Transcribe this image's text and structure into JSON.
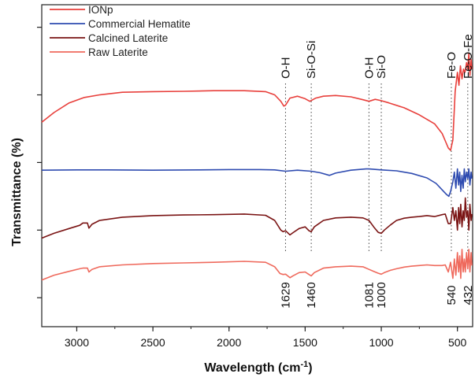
{
  "chart_data": {
    "type": "line",
    "xlabel": "Wavelength (cm",
    "xlabel_sup": "-1",
    "xlabel_suffix": ")",
    "ylabel": "Transmittance (%)",
    "xlim": [
      3230,
      400
    ],
    "x_reversed": true,
    "ylim": [
      0,
      1
    ],
    "x_ticks": [
      3000,
      2500,
      2000,
      1500,
      1000,
      500
    ],
    "x_tick_labels": [
      "3000",
      "2500",
      "2000",
      "1500",
      "1000",
      "500"
    ],
    "y_tick_labels_shown": false,
    "grid": false,
    "legend_position": "top-left",
    "series": [
      {
        "name": "IONp",
        "color": "#e8403c",
        "points": [
          [
            3230,
            0.635
          ],
          [
            3150,
            0.665
          ],
          [
            3050,
            0.695
          ],
          [
            2950,
            0.712
          ],
          [
            2850,
            0.72
          ],
          [
            2700,
            0.728
          ],
          [
            2500,
            0.73
          ],
          [
            2300,
            0.731
          ],
          [
            2100,
            0.733
          ],
          [
            1900,
            0.733
          ],
          [
            1760,
            0.73
          ],
          [
            1700,
            0.72
          ],
          [
            1660,
            0.7
          ],
          [
            1640,
            0.685
          ],
          [
            1629,
            0.688
          ],
          [
            1600,
            0.71
          ],
          [
            1550,
            0.716
          ],
          [
            1500,
            0.708
          ],
          [
            1470,
            0.7
          ],
          [
            1430,
            0.71
          ],
          [
            1380,
            0.716
          ],
          [
            1300,
            0.718
          ],
          [
            1200,
            0.714
          ],
          [
            1120,
            0.705
          ],
          [
            1081,
            0.7
          ],
          [
            1040,
            0.706
          ],
          [
            1000,
            0.702
          ],
          [
            950,
            0.695
          ],
          [
            850,
            0.68
          ],
          [
            750,
            0.658
          ],
          [
            650,
            0.63
          ],
          [
            600,
            0.6
          ],
          [
            560,
            0.555
          ],
          [
            545,
            0.548
          ],
          [
            530,
            0.58
          ],
          [
            515,
            0.73
          ],
          [
            500,
            0.79
          ],
          [
            490,
            0.75
          ],
          [
            480,
            0.81
          ],
          [
            470,
            0.77
          ],
          [
            460,
            0.8
          ],
          [
            450,
            0.79
          ],
          [
            440,
            0.82
          ],
          [
            432,
            0.8
          ],
          [
            425,
            0.85
          ],
          [
            418,
            0.78
          ],
          [
            410,
            0.83
          ],
          [
            405,
            0.8
          ]
        ]
      },
      {
        "name": "Commercial Hematite",
        "color": "#2e4bb0",
        "points": [
          [
            3230,
            0.486
          ],
          [
            3000,
            0.487
          ],
          [
            2800,
            0.487
          ],
          [
            2500,
            0.486
          ],
          [
            2200,
            0.487
          ],
          [
            2000,
            0.488
          ],
          [
            1800,
            0.488
          ],
          [
            1700,
            0.487
          ],
          [
            1629,
            0.483
          ],
          [
            1550,
            0.486
          ],
          [
            1460,
            0.483
          ],
          [
            1400,
            0.478
          ],
          [
            1340,
            0.47
          ],
          [
            1300,
            0.477
          ],
          [
            1200,
            0.486
          ],
          [
            1100,
            0.49
          ],
          [
            1081,
            0.49
          ],
          [
            1000,
            0.487
          ],
          [
            900,
            0.484
          ],
          [
            800,
            0.476
          ],
          [
            700,
            0.462
          ],
          [
            640,
            0.445
          ],
          [
            600,
            0.425
          ],
          [
            570,
            0.41
          ],
          [
            556,
            0.405
          ],
          [
            545,
            0.42
          ],
          [
            530,
            0.45
          ],
          [
            520,
            0.48
          ],
          [
            510,
            0.43
          ],
          [
            500,
            0.49
          ],
          [
            492,
            0.44
          ],
          [
            485,
            0.48
          ],
          [
            478,
            0.42
          ],
          [
            470,
            0.47
          ],
          [
            462,
            0.43
          ],
          [
            455,
            0.49
          ],
          [
            448,
            0.45
          ],
          [
            440,
            0.48
          ],
          [
            432,
            0.46
          ],
          [
            425,
            0.49
          ],
          [
            418,
            0.44
          ],
          [
            410,
            0.48
          ],
          [
            405,
            0.46
          ]
        ]
      },
      {
        "name": "Calcined Laterite",
        "color": "#7a1414",
        "points": [
          [
            3230,
            0.275
          ],
          [
            3150,
            0.29
          ],
          [
            3050,
            0.305
          ],
          [
            2980,
            0.315
          ],
          [
            2960,
            0.322
          ],
          [
            2930,
            0.322
          ],
          [
            2920,
            0.306
          ],
          [
            2900,
            0.318
          ],
          [
            2850,
            0.33
          ],
          [
            2700,
            0.34
          ],
          [
            2500,
            0.345
          ],
          [
            2300,
            0.347
          ],
          [
            2100,
            0.348
          ],
          [
            1900,
            0.35
          ],
          [
            1760,
            0.346
          ],
          [
            1700,
            0.33
          ],
          [
            1660,
            0.3
          ],
          [
            1645,
            0.295
          ],
          [
            1629,
            0.298
          ],
          [
            1600,
            0.285
          ],
          [
            1580,
            0.292
          ],
          [
            1540,
            0.305
          ],
          [
            1500,
            0.31
          ],
          [
            1475,
            0.298
          ],
          [
            1460,
            0.295
          ],
          [
            1440,
            0.31
          ],
          [
            1380,
            0.33
          ],
          [
            1300,
            0.338
          ],
          [
            1200,
            0.34
          ],
          [
            1120,
            0.338
          ],
          [
            1081,
            0.33
          ],
          [
            1050,
            0.31
          ],
          [
            1020,
            0.293
          ],
          [
            1000,
            0.29
          ],
          [
            980,
            0.3
          ],
          [
            940,
            0.316
          ],
          [
            900,
            0.33
          ],
          [
            850,
            0.337
          ],
          [
            800,
            0.34
          ],
          [
            750,
            0.342
          ],
          [
            700,
            0.345
          ],
          [
            650,
            0.342
          ],
          [
            600,
            0.348
          ],
          [
            580,
            0.35
          ],
          [
            560,
            0.32
          ],
          [
            545,
            0.32
          ],
          [
            530,
            0.37
          ],
          [
            520,
            0.33
          ],
          [
            510,
            0.36
          ],
          [
            500,
            0.3
          ],
          [
            492,
            0.37
          ],
          [
            485,
            0.32
          ],
          [
            478,
            0.38
          ],
          [
            470,
            0.31
          ],
          [
            462,
            0.36
          ],
          [
            455,
            0.33
          ],
          [
            448,
            0.4
          ],
          [
            440,
            0.34
          ],
          [
            432,
            0.36
          ],
          [
            425,
            0.3
          ],
          [
            418,
            0.38
          ],
          [
            410,
            0.33
          ],
          [
            405,
            0.35
          ]
        ]
      },
      {
        "name": "Raw Laterite",
        "color": "#ef6a5d",
        "points": [
          [
            3230,
            0.145
          ],
          [
            3150,
            0.16
          ],
          [
            3050,
            0.172
          ],
          [
            2980,
            0.18
          ],
          [
            2960,
            0.182
          ],
          [
            2930,
            0.182
          ],
          [
            2920,
            0.17
          ],
          [
            2900,
            0.178
          ],
          [
            2850,
            0.186
          ],
          [
            2700,
            0.192
          ],
          [
            2500,
            0.196
          ],
          [
            2300,
            0.198
          ],
          [
            2100,
            0.2
          ],
          [
            1900,
            0.203
          ],
          [
            1760,
            0.2
          ],
          [
            1700,
            0.186
          ],
          [
            1665,
            0.165
          ],
          [
            1645,
            0.162
          ],
          [
            1629,
            0.163
          ],
          [
            1600,
            0.152
          ],
          [
            1580,
            0.158
          ],
          [
            1540,
            0.168
          ],
          [
            1500,
            0.17
          ],
          [
            1475,
            0.162
          ],
          [
            1460,
            0.158
          ],
          [
            1440,
            0.168
          ],
          [
            1380,
            0.182
          ],
          [
            1300,
            0.186
          ],
          [
            1200,
            0.188
          ],
          [
            1120,
            0.186
          ],
          [
            1081,
            0.178
          ],
          [
            1050,
            0.172
          ],
          [
            1020,
            0.166
          ],
          [
            1000,
            0.163
          ],
          [
            980,
            0.168
          ],
          [
            940,
            0.175
          ],
          [
            900,
            0.18
          ],
          [
            850,
            0.185
          ],
          [
            800,
            0.188
          ],
          [
            750,
            0.19
          ],
          [
            700,
            0.192
          ],
          [
            650,
            0.19
          ],
          [
            600,
            0.19
          ],
          [
            580,
            0.192
          ],
          [
            560,
            0.17
          ],
          [
            545,
            0.2
          ],
          [
            530,
            0.15
          ],
          [
            520,
            0.21
          ],
          [
            510,
            0.16
          ],
          [
            500,
            0.23
          ],
          [
            492,
            0.17
          ],
          [
            485,
            0.22
          ],
          [
            478,
            0.15
          ],
          [
            470,
            0.24
          ],
          [
            462,
            0.17
          ],
          [
            455,
            0.21
          ],
          [
            448,
            0.17
          ],
          [
            440,
            0.23
          ],
          [
            432,
            0.18
          ],
          [
            425,
            0.24
          ],
          [
            418,
            0.17
          ],
          [
            410,
            0.23
          ],
          [
            405,
            0.19
          ]
        ]
      }
    ],
    "annotations": [
      {
        "x": 1629,
        "label": "O-H",
        "value_label": "1629"
      },
      {
        "x": 1460,
        "label": "Si-O-Si",
        "value_label": "1460"
      },
      {
        "x": 1081,
        "label": "O-H",
        "value_label": "1081"
      },
      {
        "x": 1000,
        "label": "Si-O",
        "value_label": "1000"
      },
      {
        "x": 540,
        "label": "Fe-O",
        "value_label": "540"
      },
      {
        "x": 432,
        "label": "Fe-O-Fe",
        "value_label": "432"
      }
    ]
  }
}
